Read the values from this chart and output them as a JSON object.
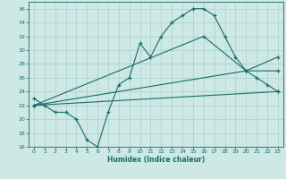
{
  "xlabel": "Humidex (Indice chaleur)",
  "bg_color": "#cde8e5",
  "grid_color": "#b0d4d0",
  "line_color": "#1a6b6b",
  "xlim": [
    -0.5,
    23.5
  ],
  "ylim": [
    16,
    37
  ],
  "xticks": [
    0,
    1,
    2,
    3,
    4,
    5,
    6,
    7,
    8,
    9,
    10,
    11,
    12,
    13,
    14,
    15,
    16,
    17,
    18,
    19,
    20,
    21,
    22,
    23
  ],
  "yticks": [
    16,
    18,
    20,
    22,
    24,
    26,
    28,
    30,
    32,
    34,
    36
  ],
  "curve1_x": [
    0,
    1,
    2,
    3,
    4,
    5,
    6,
    7,
    8,
    9,
    10,
    11,
    12,
    13,
    14,
    15,
    16,
    17,
    18,
    19,
    20,
    21,
    22,
    23
  ],
  "curve1_y": [
    23,
    22,
    21,
    21,
    20,
    17,
    16,
    21,
    25,
    26,
    31,
    29,
    32,
    34,
    35,
    36,
    36,
    35,
    32,
    29,
    27,
    26,
    25,
    24
  ],
  "curve2_x": [
    0,
    16,
    20,
    23
  ],
  "curve2_y": [
    22,
    32,
    27,
    29
  ],
  "curve3_x": [
    0,
    20,
    23
  ],
  "curve3_y": [
    22,
    27,
    27
  ],
  "curve4_x": [
    0,
    23
  ],
  "curve4_y": [
    22,
    24
  ]
}
